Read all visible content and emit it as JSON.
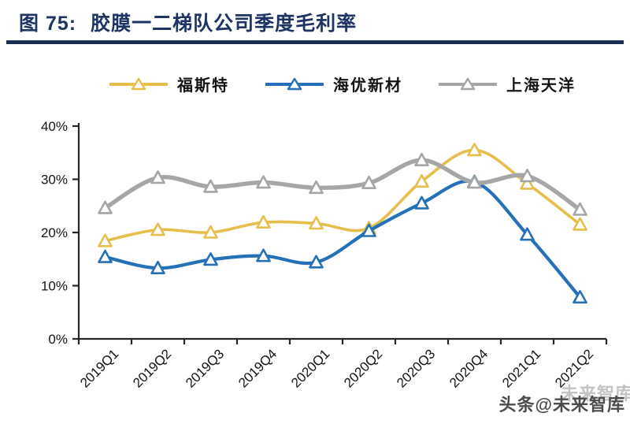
{
  "figure": {
    "label": "图 75:",
    "title": "胶膜一二梯队公司季度毛利率"
  },
  "watermark": {
    "text": "头条@未来智库",
    "echo": "未来智库"
  },
  "chart_data": {
    "type": "line",
    "title": "胶膜一二梯队公司季度毛利率",
    "categories": [
      "2019Q1",
      "2019Q2",
      "2019Q3",
      "2019Q4",
      "2020Q1",
      "2020Q2",
      "2020Q3",
      "2020Q4",
      "2021Q1",
      "2021Q2"
    ],
    "series": [
      {
        "name": "福斯特",
        "color": "#E6BE4C",
        "values": [
          18.4,
          20.5,
          20.0,
          21.9,
          21.7,
          20.8,
          29.6,
          35.5,
          29.2,
          21.5
        ]
      },
      {
        "name": "海优新材",
        "color": "#2571B7",
        "values": [
          15.4,
          13.3,
          14.9,
          15.6,
          14.4,
          20.3,
          25.5,
          29.5,
          19.6,
          7.8
        ]
      },
      {
        "name": "上海天洋",
        "color": "#A6A6A6",
        "values": [
          24.6,
          30.3,
          28.6,
          29.4,
          28.4,
          29.3,
          33.6,
          29.4,
          30.6,
          24.3
        ]
      }
    ],
    "ylim": [
      0,
      40
    ],
    "yticks": [
      {
        "value": 0,
        "label": "0%"
      },
      {
        "value": 10,
        "label": "10%"
      },
      {
        "value": 20,
        "label": "20%"
      },
      {
        "value": 30,
        "label": "30%"
      },
      {
        "value": 40,
        "label": "40%"
      }
    ],
    "xlabel": "",
    "ylabel": "",
    "grid": false,
    "legend_position": "top",
    "marker": "open-triangle",
    "axis_color": "#262626"
  }
}
